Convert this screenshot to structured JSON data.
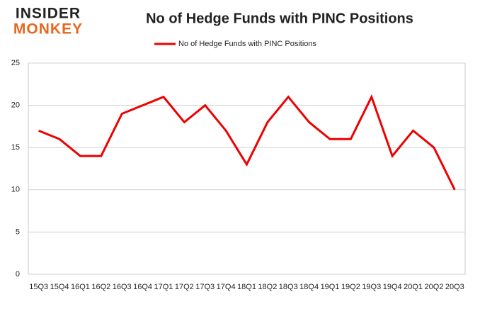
{
  "logo": {
    "line1": "INSIDER",
    "line2": "MONKEY"
  },
  "chart_data": {
    "type": "line",
    "title": "No of Hedge Funds with PINC Positions",
    "categories": [
      "15Q3",
      "15Q4",
      "16Q1",
      "16Q2",
      "16Q3",
      "16Q4",
      "17Q1",
      "17Q2",
      "17Q3",
      "17Q4",
      "18Q1",
      "18Q2",
      "18Q3",
      "18Q4",
      "19Q1",
      "19Q2",
      "19Q3",
      "19Q4",
      "20Q1",
      "20Q2",
      "20Q3"
    ],
    "series": [
      {
        "name": "No of Hedge Funds with PINC Positions",
        "color": "#ee0000",
        "values": [
          17,
          16,
          14,
          14,
          19,
          20,
          21,
          18,
          20,
          17,
          13,
          18,
          21,
          18,
          16,
          16,
          21,
          14,
          17,
          15,
          10
        ]
      }
    ],
    "ylim": [
      0,
      25
    ],
    "yticks": [
      0,
      5,
      10,
      15,
      20,
      25
    ],
    "grid": true,
    "legend": "top"
  }
}
